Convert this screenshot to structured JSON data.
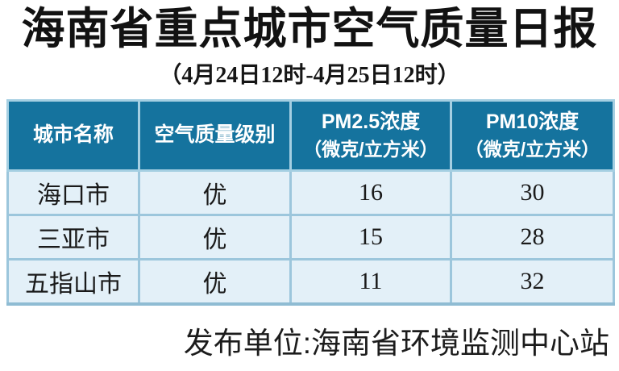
{
  "chart_data": {
    "type": "table",
    "title": "海南省重点城市空气质量日报",
    "subtitle": "（4月24日12时-4月25日12时）",
    "columns": [
      "城市名称",
      "空气质量级别",
      "PM2.5浓度（微克/立方米）",
      "PM10浓度（微克/立方米）"
    ],
    "rows": [
      [
        "海口市",
        "优",
        "16",
        "30"
      ],
      [
        "三亚市",
        "优",
        "15",
        "28"
      ],
      [
        "五指山市",
        "优",
        "11",
        "32"
      ]
    ],
    "source": "发布单位:海南省环境监测中心站"
  },
  "header_display": [
    [
      "城市名称"
    ],
    [
      "空气质量级别"
    ],
    [
      "PM2.5浓度",
      "（微克/立方米）"
    ],
    [
      "PM10浓度",
      "（微克/立方米）"
    ]
  ],
  "colors": {
    "header_bg": "#15739E",
    "header_text": "#FFFFFF",
    "cell_bg": "#E3F0F8",
    "grid_line": "#9CC6DC",
    "outer_border": "#B6D9EA",
    "bottom_border": "#8FBCD3",
    "text": "#111111"
  }
}
